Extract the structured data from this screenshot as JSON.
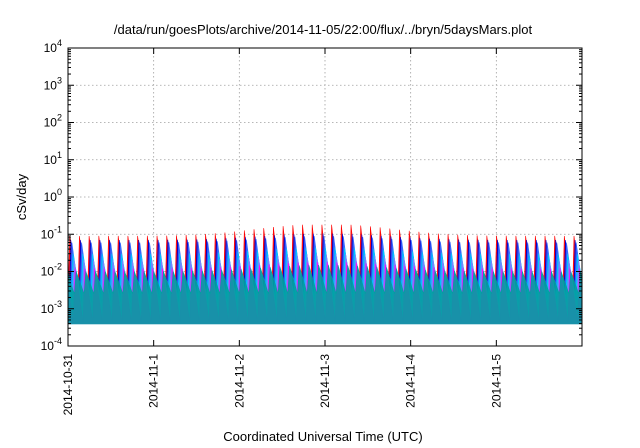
{
  "chart_data": {
    "type": "area",
    "title": "/data/run/goesPlots/archive/2014-11-05/22:00/flux/../bryn/5daysMars.plot",
    "xlabel": "Coordinated Universal Time (UTC)",
    "ylabel": "cSv/day",
    "yscale": "log",
    "ylim": [
      0.0001,
      10000
    ],
    "xlim": [
      "2014-10-31T00:00",
      "2014-11-06T00:00"
    ],
    "x_ticks": [
      {
        "label": "2014-10-31",
        "value": "2014-10-31T00:00"
      },
      {
        "label": "2014-11-1",
        "value": "2014-11-01T00:00"
      },
      {
        "label": "2014-11-2",
        "value": "2014-11-02T00:00"
      },
      {
        "label": "2014-11-3",
        "value": "2014-11-03T00:00"
      },
      {
        "label": "2014-11-4",
        "value": "2014-11-04T00:00"
      },
      {
        "label": "2014-11-5",
        "value": "2014-11-05T00:00"
      }
    ],
    "y_ticks": [
      {
        "base": "10",
        "exp": "4",
        "value": 10000
      },
      {
        "base": "10",
        "exp": "3",
        "value": 1000
      },
      {
        "base": "10",
        "exp": "2",
        "value": 100
      },
      {
        "base": "10",
        "exp": "1",
        "value": 10
      },
      {
        "base": "10",
        "exp": "0",
        "value": 1
      },
      {
        "base": "10",
        "exp": "-1",
        "value": 0.1
      },
      {
        "base": "10",
        "exp": "-2",
        "value": 0.01
      },
      {
        "base": "10",
        "exp": "-3",
        "value": 0.001
      },
      {
        "base": "10",
        "exp": "-4",
        "value": 0.0001
      }
    ],
    "grid": true,
    "pattern": {
      "cycles_per_day": 8.8,
      "envelope_max": 0.18,
      "envelope_peak_at": "2014-11-03T00:00"
    },
    "series": [
      {
        "color": "#ff0000",
        "peak": 0.09,
        "trough": 0.0015
      },
      {
        "color": "#0000cc",
        "peak": 0.07,
        "trough": 0.0012
      },
      {
        "color": "#3366ff",
        "peak": 0.06,
        "trough": 0.0015
      },
      {
        "color": "#00c8ff",
        "peak": 0.03,
        "trough": 0.002
      },
      {
        "color": "#8080ff",
        "peak": 0.02,
        "trough": 0.0012
      },
      {
        "color": "#ff00ff",
        "peak": 0.012,
        "trough": 0.00045
      },
      {
        "color": "#00a0a0",
        "peak": 0.01,
        "trough": 0.0025
      }
    ]
  }
}
